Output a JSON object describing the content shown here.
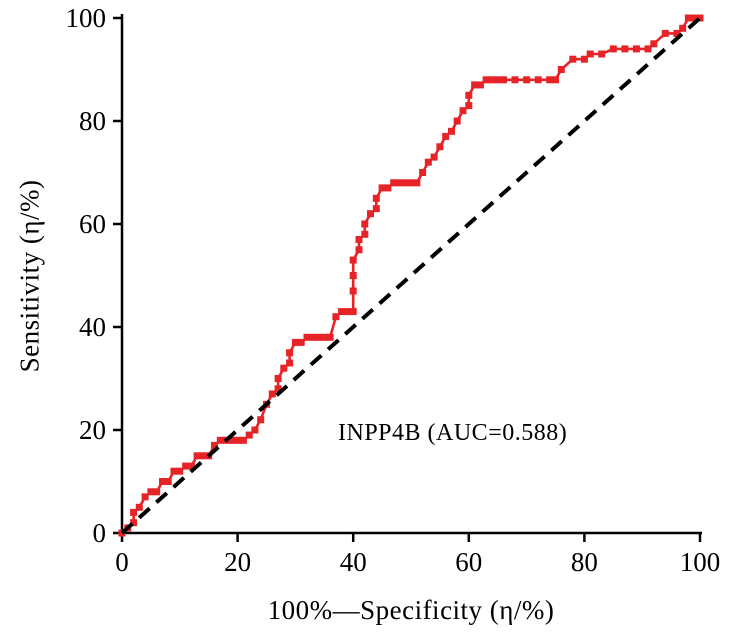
{
  "chart_data": {
    "type": "line",
    "title": "",
    "xlabel": "100%—Specificity (η/%)",
    "ylabel": "Sensitivity (η/%)",
    "xlim": [
      0,
      100
    ],
    "ylim": [
      0,
      100
    ],
    "xticks": [
      0,
      20,
      40,
      60,
      80,
      100
    ],
    "yticks": [
      0,
      20,
      40,
      60,
      80,
      100
    ],
    "grid": false,
    "legend": "none",
    "annotation": "INPP4B (AUC=0.588)",
    "auc": 0.588,
    "colors": {
      "roc_curve": "#e62327",
      "reference_line": "#000000",
      "axis": "#000000"
    },
    "series": [
      {
        "name": "INPP4B ROC curve",
        "style": "solid-with-square-markers",
        "color": "#e62327",
        "points": [
          [
            0,
            0
          ],
          [
            1,
            1
          ],
          [
            2,
            2
          ],
          [
            2,
            4
          ],
          [
            3,
            5
          ],
          [
            4,
            7
          ],
          [
            5,
            8
          ],
          [
            6,
            8
          ],
          [
            7,
            10
          ],
          [
            8,
            10
          ],
          [
            9,
            12
          ],
          [
            10,
            12
          ],
          [
            11,
            13
          ],
          [
            12,
            13
          ],
          [
            13,
            15
          ],
          [
            14,
            15
          ],
          [
            15,
            15
          ],
          [
            16,
            17
          ],
          [
            17,
            18
          ],
          [
            18,
            18
          ],
          [
            19,
            18
          ],
          [
            20,
            18
          ],
          [
            21,
            18
          ],
          [
            22,
            19
          ],
          [
            23,
            20
          ],
          [
            24,
            22
          ],
          [
            25,
            25
          ],
          [
            26,
            27
          ],
          [
            27,
            28
          ],
          [
            27,
            30
          ],
          [
            28,
            32
          ],
          [
            29,
            33
          ],
          [
            29,
            35
          ],
          [
            30,
            37
          ],
          [
            31,
            37
          ],
          [
            32,
            38
          ],
          [
            33,
            38
          ],
          [
            34,
            38
          ],
          [
            35,
            38
          ],
          [
            36,
            38
          ],
          [
            37,
            42
          ],
          [
            38,
            43
          ],
          [
            39,
            43
          ],
          [
            40,
            43
          ],
          [
            40,
            47
          ],
          [
            40,
            50
          ],
          [
            40,
            53
          ],
          [
            41,
            55
          ],
          [
            41,
            57
          ],
          [
            42,
            58
          ],
          [
            42,
            60
          ],
          [
            43,
            62
          ],
          [
            44,
            63
          ],
          [
            44,
            65
          ],
          [
            45,
            67
          ],
          [
            46,
            67
          ],
          [
            47,
            68
          ],
          [
            48,
            68
          ],
          [
            49,
            68
          ],
          [
            50,
            68
          ],
          [
            51,
            68
          ],
          [
            52,
            70
          ],
          [
            53,
            72
          ],
          [
            54,
            73
          ],
          [
            55,
            75
          ],
          [
            56,
            77
          ],
          [
            57,
            78
          ],
          [
            58,
            80
          ],
          [
            59,
            82
          ],
          [
            60,
            83
          ],
          [
            60,
            85
          ],
          [
            61,
            87
          ],
          [
            62,
            87
          ],
          [
            63,
            88
          ],
          [
            64,
            88
          ],
          [
            65,
            88
          ],
          [
            66,
            88
          ],
          [
            68,
            88
          ],
          [
            70,
            88
          ],
          [
            72,
            88
          ],
          [
            74,
            88
          ],
          [
            75,
            88
          ],
          [
            76,
            90
          ],
          [
            78,
            92
          ],
          [
            80,
            92
          ],
          [
            81,
            93
          ],
          [
            83,
            93
          ],
          [
            85,
            94
          ],
          [
            87,
            94
          ],
          [
            89,
            94
          ],
          [
            91,
            94
          ],
          [
            92,
            95
          ],
          [
            94,
            97
          ],
          [
            96,
            97
          ],
          [
            97,
            98
          ],
          [
            98,
            100
          ],
          [
            99,
            100
          ],
          [
            100,
            100
          ]
        ]
      },
      {
        "name": "reference diagonal",
        "style": "dashed",
        "color": "#000000",
        "points": [
          [
            0,
            0
          ],
          [
            100,
            100
          ]
        ]
      }
    ]
  }
}
